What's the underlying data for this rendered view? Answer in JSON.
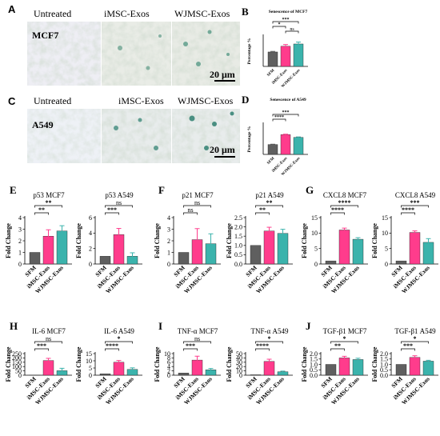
{
  "colors": {
    "sfm": "#5f5f5f",
    "imsc": "#ff3c8c",
    "wjmsc": "#3bb3ac",
    "sig": "#000000"
  },
  "microscopy": {
    "letters": [
      "A",
      "C"
    ],
    "header_labels": [
      "Untreated",
      "iMSC-Exos",
      "WJMSC-Exos"
    ],
    "rows": [
      {
        "cell_line": "MCF7",
        "scale_bar": "20 μm"
      },
      {
        "cell_line": "A549",
        "scale_bar": "20 μm"
      }
    ]
  },
  "chart_data": [
    {
      "id": "b",
      "letter": "B",
      "type": "bar",
      "title": "Senescence of MCF7",
      "ylabel": "Percentage %",
      "categories": [
        "SFM",
        "iMSC-Exos",
        "WJMSC-Exos"
      ],
      "values": [
        3.8,
        5.3,
        5.9
      ],
      "errors": [
        0.15,
        0.45,
        0.5
      ],
      "ylim": [
        0,
        8
      ],
      "ticks": [],
      "sig": [
        {
          "a": 0,
          "b": 2,
          "label": "***"
        },
        {
          "a": 0,
          "b": 1,
          "label": "*"
        },
        {
          "a": 1,
          "b": 2,
          "label": "ns"
        }
      ]
    },
    {
      "id": "d",
      "letter": "D",
      "type": "bar",
      "title": "Senescence of A549",
      "ylabel": "Percentage %",
      "categories": [
        "SFM",
        "iMSC-Exos",
        "WJMSC-Exos"
      ],
      "values": [
        6.5,
        13.0,
        11.2
      ],
      "errors": [
        0.2,
        0.3,
        0.3
      ],
      "ylim": [
        0,
        20
      ],
      "ticks": [],
      "sig": [
        {
          "a": 0,
          "b": 2,
          "label": "***"
        },
        {
          "a": 0,
          "b": 1,
          "label": "****"
        }
      ]
    },
    {
      "id": "e1",
      "letter": "E",
      "type": "bar",
      "title": "p53 MCF7",
      "ylabel": "Fold Change",
      "categories": [
        "SFM",
        "iMSC-Exos",
        "WJMSC-Exos"
      ],
      "values": [
        1.0,
        2.4,
        2.85
      ],
      "errors": [
        0,
        0.55,
        0.45
      ],
      "ylim": [
        0,
        4
      ],
      "ticks": [
        0,
        1,
        2,
        3,
        4
      ],
      "sig": [
        {
          "a": 0,
          "b": 2,
          "label": "**"
        },
        {
          "a": 0,
          "b": 1,
          "label": "**"
        }
      ]
    },
    {
      "id": "e2",
      "letter": "",
      "type": "bar",
      "title": "p53 A549",
      "ylabel": "Fold Change",
      "categories": [
        "SFM",
        "iMSC-Exos",
        "WJMSC-Exos"
      ],
      "values": [
        1.0,
        3.8,
        1.0
      ],
      "errors": [
        0,
        0.8,
        0.45
      ],
      "ylim": [
        0,
        6
      ],
      "ticks": [
        0,
        2,
        4,
        6
      ],
      "sig": [
        {
          "a": 0,
          "b": 2,
          "label": "ns"
        },
        {
          "a": 0,
          "b": 1,
          "label": "***"
        }
      ]
    },
    {
      "id": "f1",
      "letter": "F",
      "type": "bar",
      "title": "p21 MCF7",
      "ylabel": "Fold Change",
      "categories": [
        "SFM",
        "iMSC-Exos",
        "WJMSC-Exos"
      ],
      "values": [
        1.0,
        2.1,
        1.75
      ],
      "errors": [
        0,
        0.95,
        0.85
      ],
      "ylim": [
        0,
        4
      ],
      "ticks": [
        0,
        1,
        2,
        3,
        4
      ],
      "sig": [
        {
          "a": 0,
          "b": 2,
          "label": "ns"
        },
        {
          "a": 0,
          "b": 1,
          "label": "ns"
        }
      ]
    },
    {
      "id": "f2",
      "letter": "",
      "type": "bar",
      "title": "p21 A549",
      "ylabel": "Fold Change",
      "categories": [
        "SFM",
        "iMSC-Exos",
        "WJMSC-Exos"
      ],
      "values": [
        1.0,
        1.78,
        1.65
      ],
      "errors": [
        0,
        0.2,
        0.22
      ],
      "ylim": [
        0,
        2.5
      ],
      "ticks": [
        0.0,
        0.5,
        1.0,
        1.5,
        2.0,
        2.5
      ],
      "sig": [
        {
          "a": 0,
          "b": 2,
          "label": "**"
        },
        {
          "a": 0,
          "b": 1,
          "label": "**"
        }
      ]
    },
    {
      "id": "g1",
      "letter": "G",
      "type": "bar",
      "title": "CXCL8 MCF7",
      "ylabel": "Fold Change",
      "categories": [
        "SFM",
        "iMSC-Exos",
        "WJMSC-Exos"
      ],
      "values": [
        1.0,
        11.0,
        8.0
      ],
      "errors": [
        0,
        0.6,
        0.5
      ],
      "ylim": [
        0,
        15
      ],
      "ticks": [
        0,
        5,
        10,
        15
      ],
      "sig": [
        {
          "a": 0,
          "b": 2,
          "label": "****"
        },
        {
          "a": 0,
          "b": 1,
          "label": "****"
        }
      ]
    },
    {
      "id": "g2",
      "letter": "",
      "type": "bar",
      "title": "CXCL8 A549",
      "ylabel": "Fold Change",
      "categories": [
        "SFM",
        "iMSC-Exos",
        "WJMSC-Exos"
      ],
      "values": [
        1.0,
        10.2,
        7.0
      ],
      "errors": [
        0,
        0.5,
        1.2
      ],
      "ylim": [
        0,
        15
      ],
      "ticks": [
        0,
        5,
        10,
        15
      ],
      "sig": [
        {
          "a": 0,
          "b": 2,
          "label": "***"
        },
        {
          "a": 0,
          "b": 1,
          "label": "****"
        }
      ]
    },
    {
      "id": "h1",
      "letter": "H",
      "type": "bar",
      "title": "IL-6 MCF7",
      "ylabel": "Fold Change",
      "categories": [
        "SFM",
        "iMSC-Exos",
        "WJMSC-Exos"
      ],
      "values": [
        1.0,
        170,
        52
      ],
      "errors": [
        0,
        25,
        28
      ],
      "ylim": [
        0,
        250
      ],
      "ticks": [
        0,
        50,
        100,
        150,
        200,
        250
      ],
      "sig": [
        {
          "a": 0,
          "b": 2,
          "label": "ns"
        },
        {
          "a": 0,
          "b": 1,
          "label": "***"
        }
      ]
    },
    {
      "id": "h2",
      "letter": "",
      "type": "bar",
      "title": "IL-6 A549",
      "ylabel": "Fold Change",
      "categories": [
        "SFM",
        "iMSC-Exos",
        "WJMSC-Exos"
      ],
      "values": [
        1.0,
        9.0,
        4.0
      ],
      "errors": [
        0,
        1.2,
        1.1
      ],
      "ylim": [
        0,
        15
      ],
      "ticks": [
        0,
        5,
        10,
        15
      ],
      "sig": [
        {
          "a": 0,
          "b": 2,
          "label": "*"
        },
        {
          "a": 0,
          "b": 1,
          "label": "****"
        }
      ]
    },
    {
      "id": "i1",
      "letter": "I",
      "type": "bar",
      "title": "TNF-α MCF7",
      "ylabel": "Fold Change",
      "categories": [
        "SFM",
        "iMSC-Exos",
        "WJMSC-Exos"
      ],
      "values": [
        1.0,
        7.0,
        2.5
      ],
      "errors": [
        0,
        1.8,
        0.6
      ],
      "ylim": [
        0,
        10
      ],
      "ticks": [
        0,
        2,
        4,
        6,
        8,
        10
      ],
      "sig": [
        {
          "a": 0,
          "b": 2,
          "label": "ns"
        },
        {
          "a": 0,
          "b": 1,
          "label": "***"
        }
      ]
    },
    {
      "id": "i2",
      "letter": "",
      "type": "bar",
      "title": "TNF-α A549",
      "ylabel": "Fold Change",
      "categories": [
        "SFM",
        "iMSC-Exos",
        "WJMSC-Exos"
      ],
      "values": [
        1.0,
        32,
        8.0
      ],
      "errors": [
        0,
        5,
        1.5
      ],
      "ylim": [
        0,
        50
      ],
      "ticks": [
        0,
        10,
        20,
        30,
        40,
        50
      ],
      "sig": [
        {
          "a": 0,
          "b": 2,
          "label": "*"
        },
        {
          "a": 0,
          "b": 1,
          "label": "****"
        }
      ]
    },
    {
      "id": "j1",
      "letter": "J",
      "type": "bar",
      "title": "TGF-β1 MCF7",
      "ylabel": "Fold Change",
      "categories": [
        "SFM",
        "iMSC-Exos",
        "WJMSC-Exos"
      ],
      "values": [
        1.0,
        1.6,
        1.45
      ],
      "errors": [
        0,
        0.15,
        0.12
      ],
      "ylim": [
        0,
        2.0
      ],
      "ticks": [
        0.0,
        0.5,
        1.0,
        1.5,
        2.0
      ],
      "sig": [
        {
          "a": 0,
          "b": 2,
          "label": "*"
        },
        {
          "a": 0,
          "b": 1,
          "label": "**"
        }
      ]
    },
    {
      "id": "j2",
      "letter": "",
      "type": "bar",
      "title": "TGF-β1 A549",
      "ylabel": "Fold Change",
      "categories": [
        "SFM",
        "iMSC-Exos",
        "WJMSC-Exos"
      ],
      "values": [
        1.0,
        1.65,
        1.3
      ],
      "errors": [
        0,
        0.15,
        0.08
      ],
      "ylim": [
        0,
        2.0
      ],
      "ticks": [
        0.0,
        0.5,
        1.0,
        1.5,
        2.0
      ],
      "sig": [
        {
          "a": 0,
          "b": 2,
          "label": "*"
        },
        {
          "a": 0,
          "b": 1,
          "label": "***"
        }
      ]
    }
  ]
}
